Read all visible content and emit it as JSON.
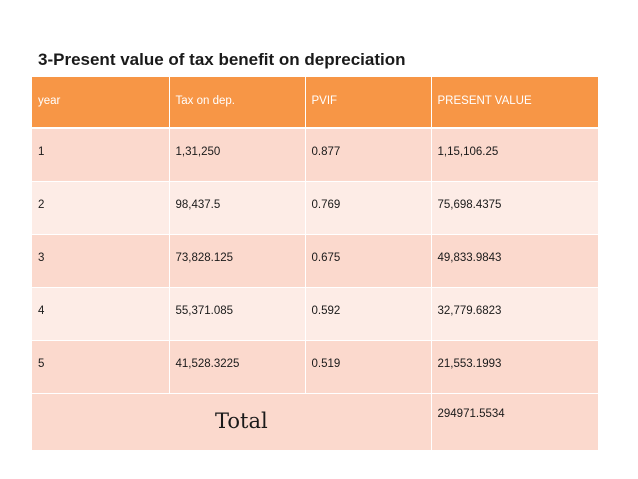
{
  "title": "3-Present value of tax benefit on depreciation",
  "table": {
    "headers": [
      "year",
      "Tax on dep.",
      "PVIF",
      "PRESENT VALUE"
    ],
    "rows": [
      [
        "1",
        "1,31,250",
        "0.877",
        "1,15,106.25"
      ],
      [
        "2",
        "98,437.5",
        "0.769",
        "75,698.4375"
      ],
      [
        "3",
        "73,828.125",
        "0.675",
        "49,833.9843"
      ],
      [
        "4",
        "55,371.085",
        "0.592",
        "32,779.6823"
      ],
      [
        "5",
        "41,528.3225",
        "0.519",
        "21,553.1993"
      ]
    ],
    "total_label": "Total",
    "total_value": "294971.5534"
  },
  "colors": {
    "header_bg": "#f79646",
    "row_dark": "#fbd9cd",
    "row_light": "#fdece6"
  }
}
